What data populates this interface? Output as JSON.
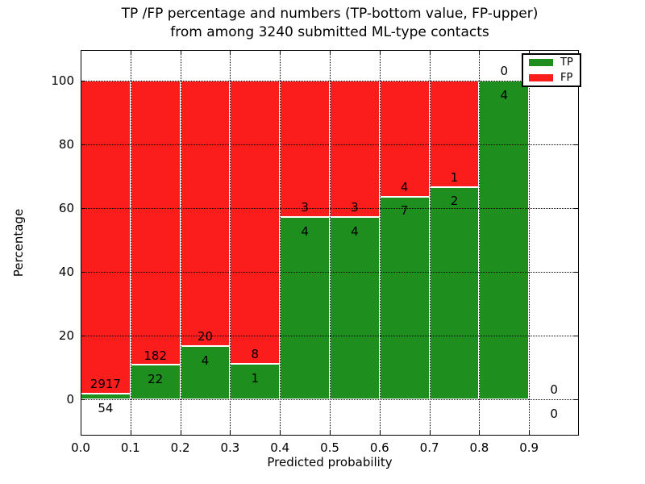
{
  "title": {
    "line1": "TP /FP percentage and numbers (TP-bottom value, FP-upper)",
    "line2": "from among 3240 submitted ML-type contacts"
  },
  "chart_data": {
    "type": "bar",
    "stacked": true,
    "title": "TP /FP percentage and numbers (TP-bottom value, FP-upper) from among 3240 submitted ML-type contacts",
    "xlabel": "Predicted probability",
    "ylabel": "Percentage",
    "xlim": [
      0.0,
      1.0
    ],
    "ylim": [
      -11.4,
      109.6
    ],
    "grid": true,
    "legend_position": "upper right",
    "total_contacts": 3240,
    "colors": {
      "tp": "#1e8e1e",
      "fp": "#fb1c1c",
      "grid": "#000000",
      "background": "#ffffff"
    },
    "categories": [
      "0.0-0.1",
      "0.1-0.2",
      "0.2-0.3",
      "0.3-0.4",
      "0.4-0.5",
      "0.5-0.6",
      "0.6-0.7",
      "0.7-0.8",
      "0.8-0.9",
      "0.9-1.0"
    ],
    "series": [
      {
        "name": "TP",
        "color": "#1e8e1e",
        "counts": [
          54,
          22,
          4,
          1,
          4,
          4,
          7,
          2,
          4,
          0
        ]
      },
      {
        "name": "FP",
        "color": "#fb1c1c",
        "counts": [
          2917,
          182,
          20,
          8,
          3,
          3,
          4,
          1,
          0,
          0
        ]
      }
    ],
    "bins": [
      {
        "x0": 0.0,
        "x1": 0.1,
        "tp": 54,
        "fp": 2917,
        "tp_pct": 1.82
      },
      {
        "x0": 0.1,
        "x1": 0.2,
        "tp": 22,
        "fp": 182,
        "tp_pct": 10.78
      },
      {
        "x0": 0.2,
        "x1": 0.3,
        "tp": 4,
        "fp": 20,
        "tp_pct": 16.67
      },
      {
        "x0": 0.3,
        "x1": 0.4,
        "tp": 1,
        "fp": 8,
        "tp_pct": 11.11
      },
      {
        "x0": 0.4,
        "x1": 0.5,
        "tp": 4,
        "fp": 3,
        "tp_pct": 57.14
      },
      {
        "x0": 0.5,
        "x1": 0.6,
        "tp": 4,
        "fp": 3,
        "tp_pct": 57.14
      },
      {
        "x0": 0.6,
        "x1": 0.7,
        "tp": 7,
        "fp": 4,
        "tp_pct": 63.64
      },
      {
        "x0": 0.7,
        "x1": 0.8,
        "tp": 2,
        "fp": 1,
        "tp_pct": 66.67
      },
      {
        "x0": 0.8,
        "x1": 0.9,
        "tp": 4,
        "fp": 0,
        "tp_pct": 100.0
      },
      {
        "x0": 0.9,
        "x1": 1.0,
        "tp": 0,
        "fp": 0,
        "tp_pct": null
      }
    ],
    "xticks": [
      {
        "v": 0.0,
        "label": "0.0"
      },
      {
        "v": 0.1,
        "label": "0.1"
      },
      {
        "v": 0.2,
        "label": "0.2"
      },
      {
        "v": 0.3,
        "label": "0.3"
      },
      {
        "v": 0.4,
        "label": "0.4"
      },
      {
        "v": 0.5,
        "label": "0.5"
      },
      {
        "v": 0.6,
        "label": "0.6"
      },
      {
        "v": 0.7,
        "label": "0.7"
      },
      {
        "v": 0.8,
        "label": "0.8"
      },
      {
        "v": 0.9,
        "label": "0.9"
      }
    ],
    "yticks": [
      {
        "v": 0,
        "label": "0"
      },
      {
        "v": 20,
        "label": "20"
      },
      {
        "v": 40,
        "label": "40"
      },
      {
        "v": 60,
        "label": "60"
      },
      {
        "v": 80,
        "label": "80"
      },
      {
        "v": 100,
        "label": "100"
      }
    ]
  }
}
